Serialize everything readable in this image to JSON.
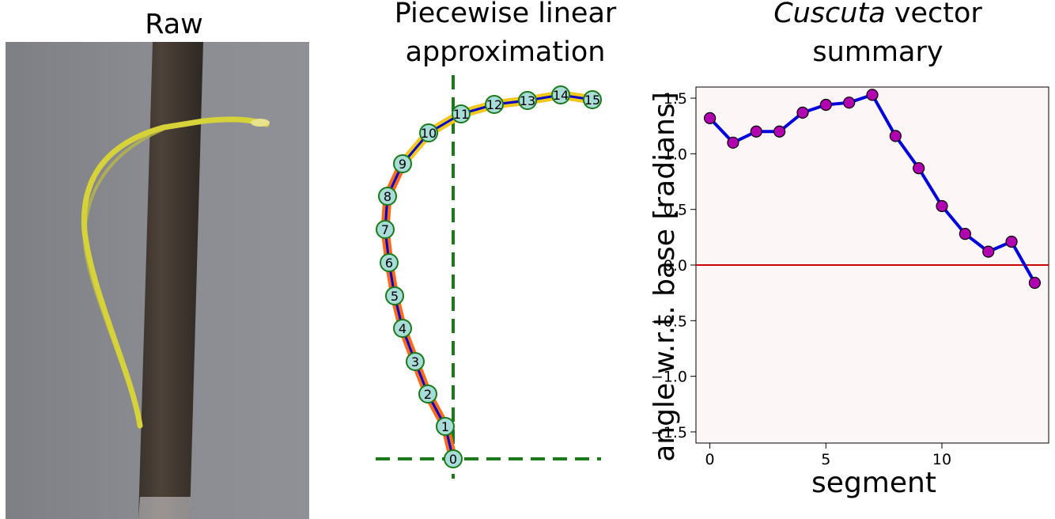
{
  "panels": {
    "raw_title": "Raw",
    "approx_title_line1": "Piecewise linear",
    "approx_title_line2": "approximation",
    "summary_title_italic": "Cuscuta",
    "summary_title_rest": " vector",
    "summary_title_line2": "summary"
  },
  "approximation": {
    "node_labels": [
      "0",
      "1",
      "2",
      "3",
      "4",
      "5",
      "6",
      "7",
      "8",
      "9",
      "10",
      "11",
      "12",
      "13",
      "14",
      "15"
    ],
    "colors": {
      "node_fill": "#a8dcd8",
      "node_stroke": "#1a7a1a",
      "path": "#0000cc",
      "axes": "#1a7a1a"
    }
  },
  "chart_data": {
    "type": "line",
    "title": "Cuscuta vector summary",
    "xlabel": "segment",
    "ylabel": "angle w.r.t. base [radians]",
    "x": [
      0,
      1,
      2,
      3,
      4,
      5,
      6,
      7,
      8,
      9,
      10,
      11,
      12,
      13,
      14
    ],
    "series": [
      {
        "values": [
          1.32,
          1.1,
          1.2,
          1.2,
          1.37,
          1.44,
          1.46,
          1.53,
          1.16,
          0.87,
          0.53,
          0.28,
          0.12,
          0.21,
          -0.16
        ]
      }
    ],
    "xlim": [
      -0.6,
      14.6
    ],
    "ylim": [
      -1.6,
      1.6
    ],
    "xticks": [
      0,
      5,
      10
    ],
    "yticks": [
      1.5,
      1.0,
      0.5,
      0.0,
      -0.5,
      -1.0,
      -1.5
    ],
    "xtick_labels": [
      "0",
      "5",
      "10"
    ],
    "ytick_labels": [
      "1.5",
      "1.0",
      "0.5",
      "0.0",
      "−0.5",
      "−1.0",
      "−1.5"
    ],
    "reference_line": 0.0,
    "colors": {
      "line": "#0000dd",
      "marker": "#b000b0",
      "reference": "#cc0000",
      "background": "#fdf6f6"
    },
    "grid": false,
    "legend": "none"
  }
}
